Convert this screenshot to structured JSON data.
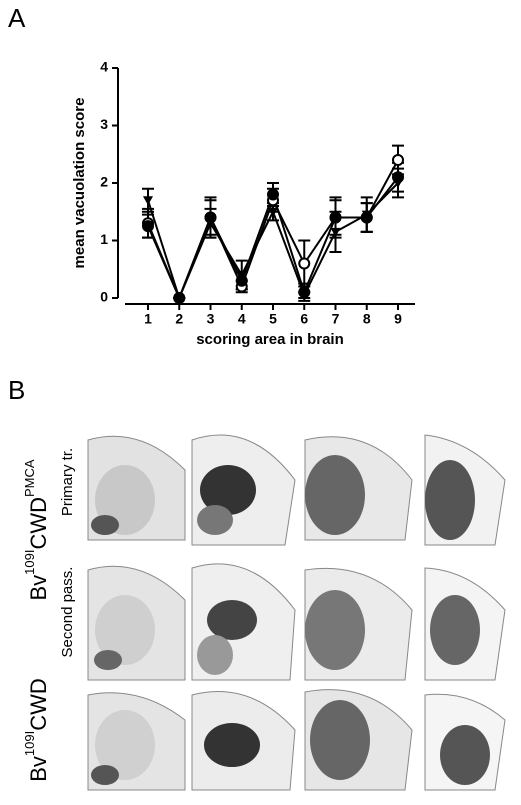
{
  "panel_labels": [
    "A",
    "B"
  ],
  "chart_data": {
    "type": "line",
    "ylabel": "mean vacuolation score",
    "xlabel": "scoring area in brain",
    "categories": [
      "1",
      "2",
      "3",
      "4",
      "5",
      "6",
      "7",
      "8",
      "9"
    ],
    "ylim": [
      0,
      4
    ],
    "yticks": [
      0,
      1,
      2,
      3,
      4
    ],
    "grid": false,
    "series": [
      {
        "color": "#000000",
        "marker": "circle-open",
        "values": [
          1.3,
          0,
          1.4,
          0.2,
          1.7,
          0.6,
          1.4,
          1.4,
          2.4
        ],
        "errors": [
          0.25,
          0,
          0.35,
          0.1,
          0.2,
          0.4,
          0.35,
          0.25,
          0.25
        ]
      },
      {
        "color": "#000000",
        "marker": "circle-filled",
        "values": [
          1.25,
          0,
          1.4,
          0.3,
          1.8,
          0.1,
          1.4,
          1.4,
          2.1
        ],
        "errors": [
          0.2,
          0,
          0.3,
          0.15,
          0.2,
          0.15,
          0.3,
          0.25,
          0.25
        ]
      },
      {
        "color": "#000000",
        "marker": "triangle-down",
        "values": [
          1.7,
          0,
          1.3,
          0.4,
          1.5,
          0.05,
          1.15,
          1.45,
          2.0
        ],
        "errors": [
          0.2,
          0,
          0.25,
          0.25,
          0.15,
          0.05,
          0.35,
          0.3,
          0.25
        ]
      }
    ]
  },
  "images": {
    "group1": {
      "prefix": "Bv",
      "sup": "109I",
      "main": "CWD",
      "sup2": "PMCA"
    },
    "group2": {
      "prefix": "Bv",
      "sup": "109I",
      "main": "CWD"
    },
    "row_labels": [
      "Primary tr.",
      "Second pass."
    ]
  }
}
